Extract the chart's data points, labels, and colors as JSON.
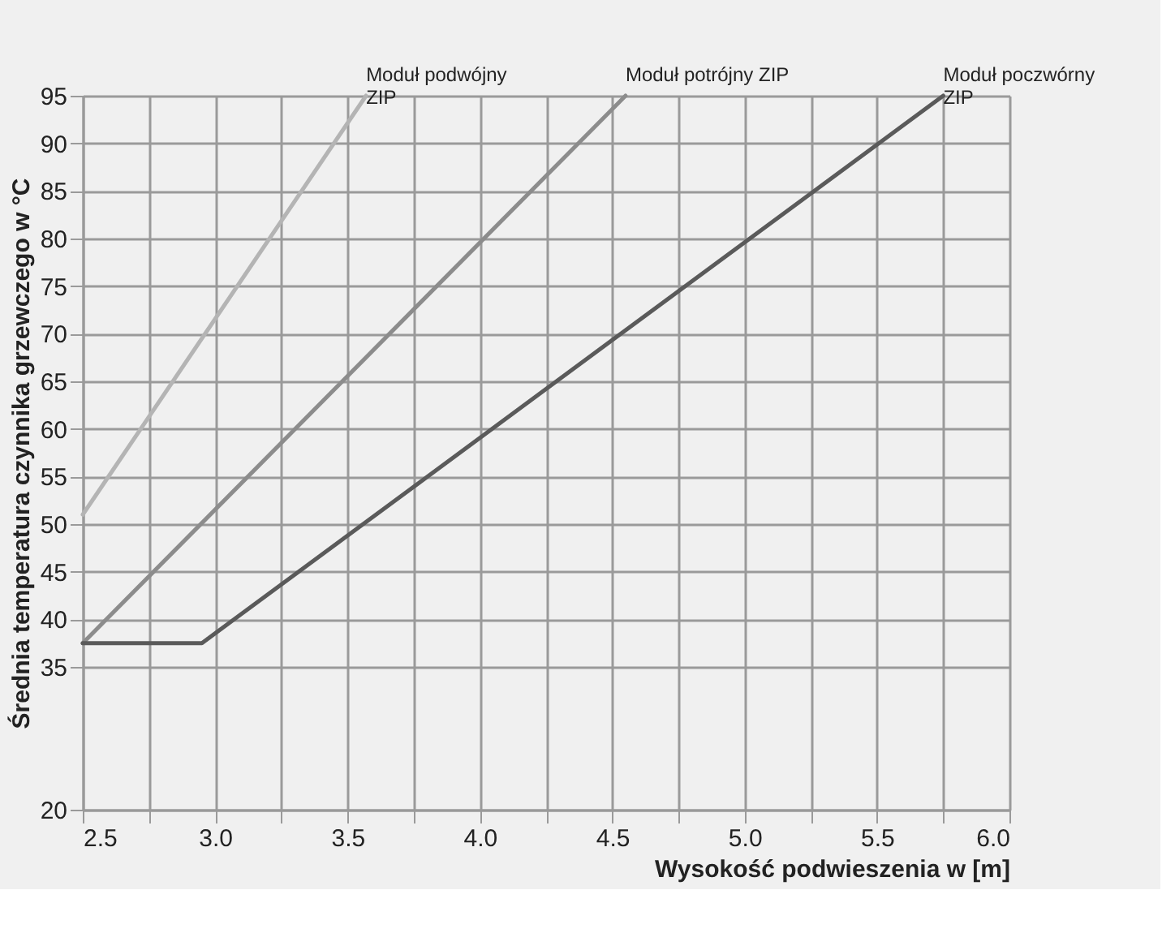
{
  "chart_data": {
    "type": "line",
    "xlabel": "Wysokość podwieszenia w [m]",
    "ylabel": "Średnia temperatura czynnika grzewczego w °C",
    "xlim": [
      2.5,
      6.0
    ],
    "xticks": [
      2.5,
      {
        "value": 2.75,
        "label": null
      },
      {
        "value": 3,
        "label": "3.0"
      },
      {
        "value": 3.25,
        "label": null
      },
      3.5,
      {
        "value": 3.75,
        "label": null
      },
      {
        "value": 4,
        "label": "4.0"
      },
      {
        "value": 4.25,
        "label": null
      },
      4.5,
      {
        "value": 4.75,
        "label": null
      },
      {
        "value": 5,
        "label": "5.0"
      },
      {
        "value": 5.25,
        "label": null
      },
      5.5,
      {
        "value": 5.75,
        "label": null
      },
      {
        "value": 6,
        "label": "6.0"
      }
    ],
    "ylim": [
      20,
      95
    ],
    "yticks": [
      20,
      35,
      40,
      45,
      50,
      55,
      60,
      65,
      70,
      75,
      80,
      85,
      90,
      95
    ],
    "grid": true,
    "series": [
      {
        "name": "Moduł podwójny\nZIP",
        "color": "#b4b4b4",
        "x": [
          2.5,
          3.57
        ],
        "values": [
          51,
          95
        ]
      },
      {
        "name": "Moduł potrójny ZIP",
        "color": "#8c8c8c",
        "x": [
          2.5,
          4.55
        ],
        "values": [
          37.5,
          95
        ]
      },
      {
        "name": "Moduł poczwórny\nZIP",
        "color": "#5a5a5a",
        "x": [
          2.5,
          2.95,
          5.75
        ],
        "values": [
          37.5,
          37.5,
          95
        ]
      }
    ]
  }
}
